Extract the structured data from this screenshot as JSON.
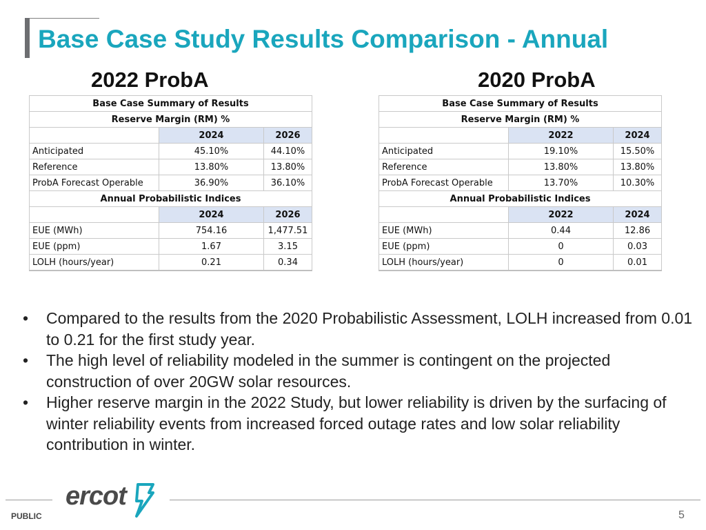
{
  "title": "Base Case Study Results Comparison - Annual",
  "left": {
    "heading": "2022 ProbA",
    "summary_title": "Base Case Summary of Results",
    "rm_title": "Reserve Margin (RM) %",
    "rm_years": [
      "2024",
      "2026"
    ],
    "rm_rows": [
      {
        "label": "Anticipated",
        "values": [
          "45.10%",
          "44.10%"
        ]
      },
      {
        "label": "Reference",
        "values": [
          "13.80%",
          "13.80%"
        ]
      },
      {
        "label": "ProbA Forecast Operable",
        "values": [
          "36.90%",
          "36.10%"
        ]
      }
    ],
    "idx_title": "Annual Probabilistic Indices",
    "idx_years": [
      "2024",
      "2026"
    ],
    "idx_rows": [
      {
        "label": "EUE (MWh)",
        "values": [
          "754.16",
          "1,477.51"
        ]
      },
      {
        "label": "EUE (ppm)",
        "values": [
          "1.67",
          "3.15"
        ]
      },
      {
        "label": "LOLH (hours/year)",
        "values": [
          "0.21",
          "0.34"
        ]
      }
    ]
  },
  "right": {
    "heading": "2020 ProbA",
    "summary_title": "Base Case Summary of Results",
    "rm_title": "Reserve Margin (RM) %",
    "rm_years": [
      "2022",
      "2024"
    ],
    "rm_rows": [
      {
        "label": "Anticipated",
        "values": [
          "19.10%",
          "15.50%"
        ]
      },
      {
        "label": "Reference",
        "values": [
          "13.80%",
          "13.80%"
        ]
      },
      {
        "label": "ProbA Forecast Operable",
        "values": [
          "13.70%",
          "10.30%"
        ]
      }
    ],
    "idx_title": "Annual Probabilistic Indices",
    "idx_years": [
      "2022",
      "2024"
    ],
    "idx_rows": [
      {
        "label": "EUE (MWh)",
        "values": [
          "0.44",
          "12.86"
        ]
      },
      {
        "label": "EUE (ppm)",
        "values": [
          "0",
          "0.03"
        ]
      },
      {
        "label": "LOLH (hours/year)",
        "values": [
          "0",
          "0.01"
        ]
      }
    ]
  },
  "bullets": [
    "Compared to the results from the 2020 Probabilistic Assessment, LOLH increased from 0.01 to 0.21 for the first study year.",
    "The high level of reliability modeled in the summer is contingent on the projected construction of over 20GW solar resources.",
    "Higher reserve margin in the 2022 Study, but lower reliability is driven by the surfacing of winter reliability events from increased forced outage rates and low solar reliability contribution in winter."
  ],
  "bullet_glyph": "•",
  "footer": {
    "classification": "PUBLIC",
    "page_number": "5",
    "logo_text": "ercot",
    "logo_color": "#1aa6bd"
  },
  "colors": {
    "title": "#1aa6bd",
    "year_header_bg": "#dae3f3"
  }
}
